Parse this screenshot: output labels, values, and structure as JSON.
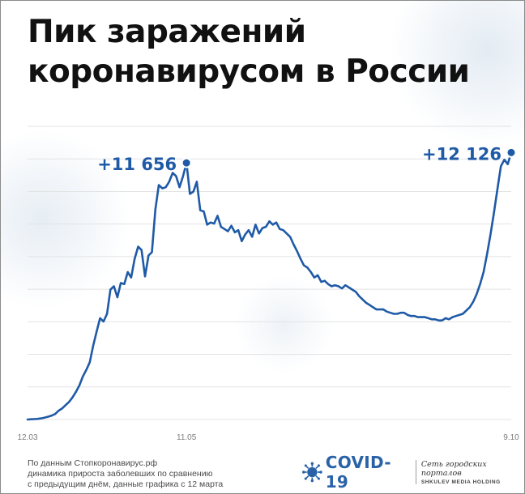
{
  "title": {
    "line1": "Пик заражений",
    "line2": "коронавирусом в России"
  },
  "chart_data": {
    "type": "line",
    "title": "Пик заражений коронавирусом в России",
    "xlabel": "",
    "ylabel": "",
    "x_tick_labels": [
      "12.03",
      "11.05",
      "9.10"
    ],
    "annotations": [
      {
        "text": "+11 656",
        "value": 11656
      },
      {
        "text": "+12 126",
        "value": 12126
      }
    ],
    "ylim": [
      0,
      13500
    ],
    "grid": "horizontal",
    "color": "#1f5aa6",
    "series": [
      {
        "values": [
          0,
          10,
          20,
          30,
          50,
          90,
          130,
          180,
          250,
          400,
          500,
          650,
          800,
          1000,
          1250,
          1550,
          1950,
          2250,
          2600,
          3350,
          4000,
          4600,
          4450,
          4800,
          5900,
          6050,
          5550,
          6200,
          6150,
          6700,
          6450,
          7300,
          7850,
          7700,
          6500,
          7450,
          7600,
          9550,
          10650,
          10500,
          10550,
          10800,
          11200,
          11050,
          10550,
          11050,
          11656,
          10250,
          10350,
          10800,
          9500,
          9450,
          8850,
          8950,
          8900,
          9250,
          8750,
          8650,
          8550,
          8800,
          8500,
          8600,
          8100,
          8400,
          8600,
          8300,
          8850,
          8450,
          8700,
          8750,
          9000,
          8850,
          8950,
          8650,
          8600,
          8450,
          8300,
          7950,
          7650,
          7300,
          7000,
          6900,
          6700,
          6450,
          6550,
          6250,
          6300,
          6150,
          6050,
          6100,
          6050,
          5950,
          6100,
          6000,
          5900,
          5800,
          5600,
          5450,
          5300,
          5200,
          5100,
          5000,
          5000,
          5000,
          4900,
          4850,
          4800,
          4800,
          4850,
          4850,
          4750,
          4700,
          4700,
          4650,
          4650,
          4650,
          4600,
          4550,
          4550,
          4500,
          4500,
          4600,
          4550,
          4650,
          4700,
          4750,
          4800,
          4950,
          5100,
          5350,
          5700,
          6150,
          6700,
          7500,
          8400,
          9400,
          10450,
          11500,
          11800,
          11600,
          12126
        ]
      }
    ]
  },
  "footnote": {
    "line1": "По данным Стопкоронавирус.рф",
    "line2": "динамика прироста заболевших по сравнению",
    "line3": "с предыдущим днём, данные графика с 12 марта"
  },
  "logo": {
    "covid_text": "COVID-19",
    "holding_name": "Сеть городских порталов",
    "holding_brand": "SHKULEV MEDIA HOLDING",
    "accent": "#2a62a8"
  },
  "icons": {
    "virus": "virus-icon"
  }
}
